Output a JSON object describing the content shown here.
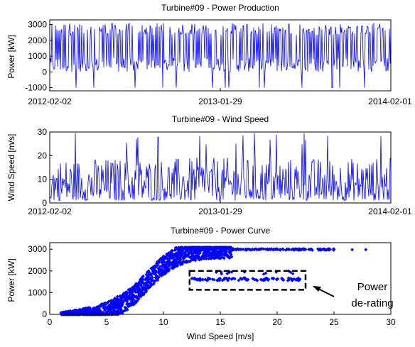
{
  "chart_data": [
    {
      "type": "line",
      "title": "Turbine#09 - Power Production",
      "ylabel": "Power [kW]",
      "xlabel": "",
      "x_tick_labels": [
        "2012-02-02",
        "2013-01-29",
        "2014-02-01"
      ],
      "xlim": [
        "2012-02-02",
        "2014-02-01"
      ],
      "ylim": [
        -1200,
        3300
      ],
      "y_ticks": [
        -1000,
        0,
        1000,
        2000,
        3000
      ],
      "grid": false,
      "series": [
        {
          "color": "#0000ff",
          "x": [
            "2012-02-02",
            "2013-01-29",
            "2014-02-01"
          ],
          "y_min": -1000,
          "y_max": 3100,
          "typical_range": [
            0,
            3100
          ]
        }
      ]
    },
    {
      "type": "line",
      "title": "Turbine#09 - Wind Speed",
      "ylabel": "Wind Speed [m/s]",
      "xlabel": "",
      "x_tick_labels": [
        "2012-02-02",
        "2013-01-29",
        "2014-02-01"
      ],
      "xlim": [
        "2012-02-02",
        "2014-02-01"
      ],
      "ylim": [
        0,
        30
      ],
      "y_ticks": [
        0,
        10,
        20,
        30
      ],
      "grid": false,
      "series": [
        {
          "color": "#0000ff",
          "x": [
            "2012-02-02",
            "2013-01-29",
            "2014-02-01"
          ],
          "y_min": 0,
          "y_max": 30,
          "typical_range": [
            1,
            14
          ]
        }
      ]
    },
    {
      "type": "scatter",
      "title": "Turbine#09 - Power Curve",
      "xlabel": "Wind Speed [m/s]",
      "ylabel": "Power [kW]",
      "xlim": [
        0,
        30
      ],
      "ylim": [
        0,
        3300
      ],
      "x_ticks": [
        0,
        5,
        10,
        15,
        20,
        25,
        30
      ],
      "y_ticks": [
        0,
        1000,
        2000,
        3000
      ],
      "grid": false,
      "series": [
        {
          "color": "#0000ff",
          "marker": "diamond",
          "points": [
            [
              1.2,
              0
            ],
            [
              2,
              5
            ],
            [
              3,
              40
            ],
            [
              4,
              120
            ],
            [
              5,
              300
            ],
            [
              6,
              600
            ],
            [
              7,
              1000
            ],
            [
              8,
              1500
            ],
            [
              9,
              2100
            ],
            [
              10,
              2600
            ],
            [
              11,
              2950
            ],
            [
              12,
              3050
            ],
            [
              13,
              3050
            ],
            [
              14,
              3050
            ],
            [
              15,
              3050
            ],
            [
              16,
              3000
            ],
            [
              17,
              3000
            ],
            [
              18,
              3000
            ],
            [
              19,
              3000
            ],
            [
              20,
              3000
            ],
            [
              21,
              3000
            ],
            [
              22,
              3000
            ],
            [
              23,
              3000
            ],
            [
              24,
              3000
            ],
            [
              25,
              3000
            ],
            [
              26.6,
              2980
            ],
            [
              27.8,
              2980
            ],
            [
              12.5,
              1650
            ],
            [
              14,
              1650
            ],
            [
              16,
              1620
            ],
            [
              18,
              1600
            ],
            [
              20,
              1620
            ],
            [
              22,
              1620
            ],
            [
              16,
              1950
            ],
            [
              19,
              1900
            ]
          ]
        }
      ],
      "annotations": [
        {
          "text_lines": [
            "Power",
            "de-rating"
          ],
          "box": {
            "x": [
              12.3,
              22.5
            ],
            "y": [
              1130,
              2000
            ]
          },
          "style": "dashed"
        }
      ]
    }
  ]
}
